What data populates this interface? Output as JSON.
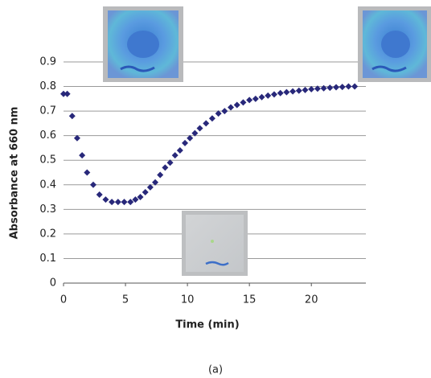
{
  "chart_data": {
    "type": "scatter",
    "x_label": "Time (min)",
    "y_label": "Absorbance at 660 nm",
    "caption": "(a)",
    "color": "#28287a",
    "x": [
      0,
      0.3,
      0.7,
      1.1,
      1.5,
      1.9,
      2.4,
      2.9,
      3.4,
      3.9,
      4.4,
      4.9,
      5.4,
      5.8,
      6.2,
      6.6,
      7.0,
      7.4,
      7.8,
      8.2,
      8.6,
      9.0,
      9.4,
      9.8,
      10.2,
      10.6,
      11.0,
      11.5,
      12.0,
      12.5,
      13.0,
      13.5,
      14.0,
      14.5,
      15.0,
      15.5,
      16.0,
      16.5,
      17.0,
      17.5,
      18.0,
      18.5,
      19.0,
      19.5,
      20.0,
      20.5,
      21.0,
      21.5,
      22.0,
      22.5,
      23.0,
      23.5
    ],
    "values": [
      0.77,
      0.77,
      0.68,
      0.59,
      0.52,
      0.45,
      0.4,
      0.36,
      0.34,
      0.33,
      0.33,
      0.33,
      0.33,
      0.34,
      0.35,
      0.37,
      0.39,
      0.41,
      0.44,
      0.47,
      0.49,
      0.52,
      0.54,
      0.57,
      0.59,
      0.61,
      0.63,
      0.65,
      0.67,
      0.69,
      0.7,
      0.715,
      0.725,
      0.735,
      0.745,
      0.75,
      0.757,
      0.763,
      0.768,
      0.773,
      0.777,
      0.78,
      0.783,
      0.786,
      0.789,
      0.791,
      0.793,
      0.795,
      0.797,
      0.798,
      0.8,
      0.8
    ],
    "xlim": [
      0,
      24.4
    ],
    "xticks": [
      0,
      5,
      10,
      15,
      20
    ],
    "ylim": [
      0,
      0.9
    ],
    "yticks": [
      0,
      0.1,
      0.2,
      0.3,
      0.4,
      0.5,
      0.6,
      0.7,
      0.8,
      0.9
    ],
    "grid": true
  }
}
